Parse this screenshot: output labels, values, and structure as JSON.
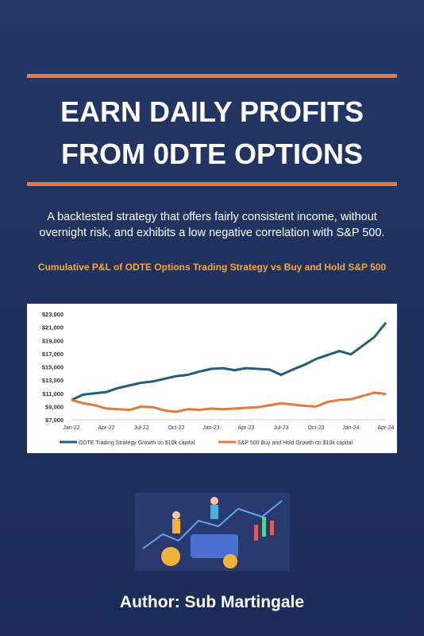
{
  "cover": {
    "title_lines": [
      "EARN DAILY PROFITS",
      "FROM 0DTE OPTIONS"
    ],
    "subtitle_lines": [
      "A backtested strategy that offers fairly consistent income, without",
      "overnight risk, and exhibits a low negative correlation with S&P 500."
    ],
    "chart_caption": "Cumulative P&L of ODTE Options Trading Strategy vs Buy and Hold S&P 500",
    "author": "Author: Sub Martingale"
  },
  "chart_data": {
    "type": "line",
    "categories": [
      "Jan-22",
      null,
      null,
      "Apr-22",
      null,
      null,
      "Jul-22",
      null,
      null,
      "Oct-22",
      null,
      null,
      "Jan-23",
      null,
      null,
      "Apr-23",
      null,
      null,
      "Jul-23",
      null,
      null,
      "Oct-23",
      null,
      null,
      "Jan-24",
      null,
      null,
      "Apr-24"
    ],
    "series": [
      {
        "name": "ODTE Trading Strategy Growth on $10k capital",
        "color": "#1f5f7a",
        "values": [
          10000,
          10800,
          11000,
          11200,
          11800,
          12200,
          12600,
          12800,
          13200,
          13600,
          13800,
          14300,
          14700,
          14800,
          14500,
          14800,
          14700,
          14600,
          13800,
          14600,
          15300,
          16200,
          16800,
          17400,
          16900,
          18200,
          19500,
          21700
        ]
      },
      {
        "name": "S&P 500 Buy and Hold Growth on $10k capital",
        "color": "#e07b39",
        "values": [
          10000,
          9500,
          9200,
          8700,
          8600,
          8500,
          9000,
          8900,
          8400,
          8200,
          8600,
          8500,
          8700,
          8600,
          8700,
          8800,
          8900,
          9200,
          9500,
          9300,
          9100,
          9000,
          9700,
          10000,
          10100,
          10600,
          11100,
          10900
        ]
      }
    ],
    "ylim": [
      7000,
      23000
    ],
    "yticks": [
      {
        "value": 7000,
        "label": "$7,000"
      },
      {
        "value": 9000,
        "label": "$9,000"
      },
      {
        "value": 11000,
        "label": "$11,000"
      },
      {
        "value": 13000,
        "label": "$13,000"
      },
      {
        "value": 15000,
        "label": "$15,000"
      },
      {
        "value": 17000,
        "label": "$17,000"
      },
      {
        "value": 19000,
        "label": "$19,000"
      },
      {
        "value": 21000,
        "label": "$21,000"
      },
      {
        "value": 23000,
        "label": "$23,000"
      }
    ],
    "grid": false
  }
}
